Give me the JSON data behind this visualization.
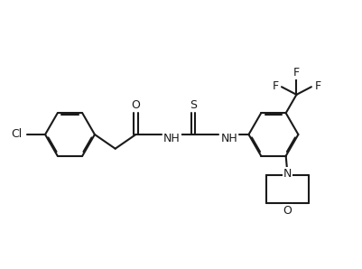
{
  "bg_color": "#ffffff",
  "line_color": "#1a1a1a",
  "lw": 1.5,
  "fs": 9.0,
  "fw": 4.02,
  "fh": 2.98,
  "dpi": 100,
  "xlim": [
    0,
    10.2
  ],
  "ylim": [
    0.0,
    7.6
  ]
}
